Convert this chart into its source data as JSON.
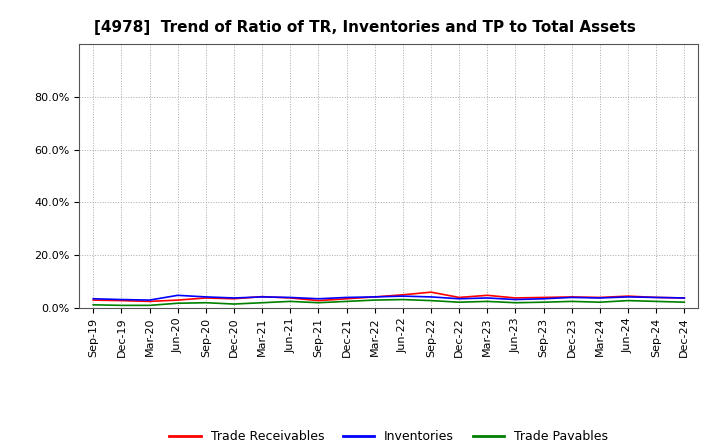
{
  "title": "[4978]  Trend of Ratio of TR, Inventories and TP to Total Assets",
  "x_labels": [
    "Sep-19",
    "Dec-19",
    "Mar-20",
    "Jun-20",
    "Sep-20",
    "Dec-20",
    "Mar-21",
    "Jun-21",
    "Sep-21",
    "Dec-21",
    "Mar-22",
    "Jun-22",
    "Sep-22",
    "Dec-22",
    "Mar-23",
    "Jun-23",
    "Sep-23",
    "Dec-23",
    "Mar-24",
    "Jun-24",
    "Sep-24",
    "Dec-24"
  ],
  "trade_receivables": [
    0.03,
    0.028,
    0.025,
    0.03,
    0.038,
    0.035,
    0.043,
    0.038,
    0.028,
    0.035,
    0.042,
    0.05,
    0.06,
    0.04,
    0.048,
    0.038,
    0.04,
    0.042,
    0.04,
    0.045,
    0.04,
    0.038
  ],
  "inventories": [
    0.035,
    0.032,
    0.03,
    0.048,
    0.042,
    0.038,
    0.042,
    0.04,
    0.035,
    0.04,
    0.042,
    0.045,
    0.042,
    0.035,
    0.038,
    0.032,
    0.035,
    0.04,
    0.038,
    0.042,
    0.04,
    0.038
  ],
  "trade_payables": [
    0.012,
    0.01,
    0.01,
    0.018,
    0.02,
    0.015,
    0.02,
    0.025,
    0.02,
    0.025,
    0.03,
    0.032,
    0.028,
    0.022,
    0.025,
    0.02,
    0.022,
    0.025,
    0.022,
    0.028,
    0.025,
    0.022
  ],
  "line_colors": {
    "trade_receivables": "#ff0000",
    "inventories": "#0000ff",
    "trade_payables": "#008000"
  },
  "ylim": [
    0.0,
    1.0
  ],
  "yticks": [
    0.0,
    0.2,
    0.4,
    0.6,
    0.8
  ],
  "ytick_labels": [
    "0.0%",
    "20.0%",
    "40.0%",
    "60.0%",
    "80.0%"
  ],
  "legend_labels": [
    "Trade Receivables",
    "Inventories",
    "Trade Payables"
  ],
  "background_color": "#ffffff",
  "plot_bg_color": "#ffffff",
  "title_fontsize": 11,
  "tick_fontsize": 8,
  "legend_fontsize": 9
}
